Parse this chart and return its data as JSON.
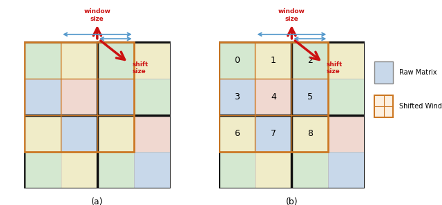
{
  "fig_width": 6.4,
  "fig_height": 2.97,
  "dpi": 100,
  "colors": {
    "light_green": "#d4e8d0",
    "light_blue": "#c8d8ea",
    "light_yellow": "#f0ecc8",
    "light_pink": "#f0d8d0",
    "orange": "#cc7722",
    "red": "#cc1111",
    "blue_arrow": "#5599cc",
    "grid_line": "#bbbbbb",
    "thick_line": "#111111"
  },
  "grid_colors": [
    [
      "light_green",
      "light_yellow",
      "light_green",
      "light_yellow"
    ],
    [
      "light_blue",
      "light_pink",
      "light_blue",
      "light_green"
    ],
    [
      "light_yellow",
      "light_blue",
      "light_yellow",
      "light_pink"
    ],
    [
      "light_green",
      "light_yellow",
      "light_green",
      "light_blue"
    ]
  ],
  "numbers": [
    "0",
    "1",
    "2",
    "3",
    "4",
    "5",
    "6",
    "7",
    "8"
  ],
  "legend_items": [
    "Raw Matrix",
    "Shifted Window"
  ],
  "labels": [
    "(a)",
    "(b)"
  ]
}
